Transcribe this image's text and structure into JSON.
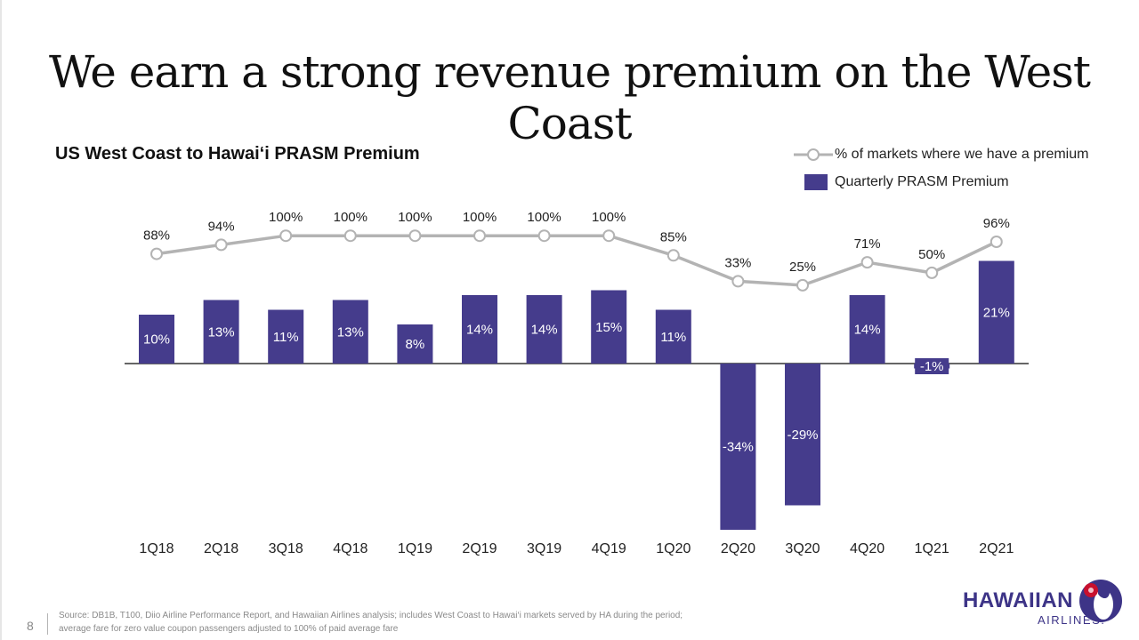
{
  "slide": {
    "title": "We earn a strong revenue premium on the West Coast",
    "page_number": "8",
    "source_line1": "Source: DB1B, T100, Diio Airline Performance Report, and Hawaiian Airlines analysis; includes West Coast to Hawai‘i markets served by HA during the period;",
    "source_line2": "average fare for zero value coupon passengers adjusted to 100% of paid average fare"
  },
  "logo": {
    "wordmark": "HAWAIIAN",
    "subtext": "AIRLINES."
  },
  "colors": {
    "bar": "#453c8c",
    "line": "#b3b3b3",
    "marker_fill": "#ffffff",
    "axis": "#333333",
    "bar_label": "#ffffff",
    "text": "#222222"
  },
  "chart_data": {
    "type": "bar+line",
    "title": "US West Coast to Hawai‘i PRASM Premium",
    "categories": [
      "1Q18",
      "2Q18",
      "3Q18",
      "4Q18",
      "1Q19",
      "2Q19",
      "3Q19",
      "4Q19",
      "1Q20",
      "2Q20",
      "3Q20",
      "4Q20",
      "1Q21",
      "2Q21"
    ],
    "series": [
      {
        "name": "Quarterly PRASM Premium",
        "type": "bar",
        "values": [
          10,
          13,
          11,
          13,
          8,
          14,
          14,
          15,
          11,
          -34,
          -29,
          14,
          -1,
          21
        ],
        "labels": [
          "10%",
          "13%",
          "11%",
          "13%",
          "8%",
          "14%",
          "14%",
          "15%",
          "11%",
          "-34%",
          "-29%",
          "14%",
          "-1%",
          "21%"
        ]
      },
      {
        "name": "% of markets where we have a premium",
        "type": "line",
        "values": [
          88,
          94,
          100,
          100,
          100,
          100,
          100,
          100,
          85,
          33,
          25,
          71,
          50,
          96
        ],
        "labels": [
          "88%",
          "94%",
          "100%",
          "100%",
          "100%",
          "100%",
          "100%",
          "100%",
          "85%",
          "33%",
          "25%",
          "71%",
          "50%",
          "96%"
        ]
      }
    ],
    "legend": "top-right",
    "grid": false
  }
}
